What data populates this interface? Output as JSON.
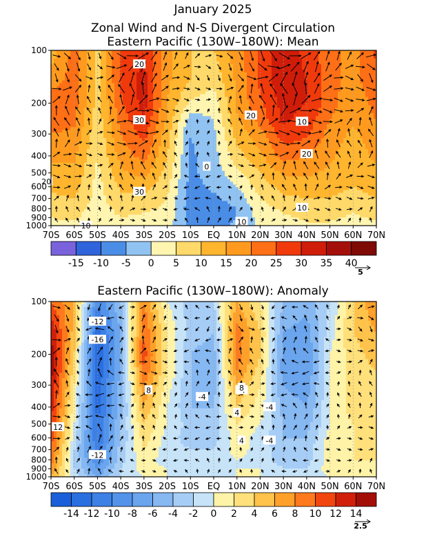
{
  "figure": {
    "title": "January 2025",
    "subtitle_line1": "Zonal Wind and N-S Divergent Circulation",
    "colors": {
      "background": "#ffffff",
      "text": "#000000",
      "arrow": "#000000"
    }
  },
  "chart_data": [
    {
      "type": "heatmap",
      "title": "Eastern Pacific (130W–180W): Mean",
      "x_ticks": [
        "70S",
        "60S",
        "50S",
        "40S",
        "30S",
        "20S",
        "10S",
        "EQ",
        "10N",
        "20N",
        "30N",
        "40N",
        "50N",
        "60N",
        "70N"
      ],
      "y_ticks": [
        "100",
        "200",
        "300",
        "400",
        "500",
        "600",
        "700",
        "800",
        "900",
        "1000"
      ],
      "y_scale": "log",
      "y_reversed": true,
      "colorbar_ticks": [
        "-15",
        "-10",
        "-5",
        "0",
        "5",
        "10",
        "15",
        "20",
        "25",
        "30",
        "35",
        "40"
      ],
      "colorbar_colors": [
        "#7a62dc",
        "#2f64dc",
        "#4a8de6",
        "#91c3f2",
        "#fff5b0",
        "#ffd96a",
        "#ffb52e",
        "#ff9a1f",
        "#ff6f16",
        "#f03a0c",
        "#cf1d0a",
        "#a50f0a",
        "#7e0b06"
      ],
      "contour_labels": [
        "20",
        "30",
        "20",
        "30",
        "20",
        "10",
        "20",
        "10",
        "0",
        "10",
        "10"
      ],
      "vector_reference": "5",
      "lat_grid": [
        -70,
        -60,
        -50,
        -40,
        -30,
        -20,
        -10,
        0,
        10,
        20,
        30,
        40,
        50,
        60,
        70
      ],
      "pressure_levels": [
        100,
        150,
        200,
        250,
        300,
        400,
        500,
        600,
        700,
        800,
        900,
        1000
      ],
      "u_wind": [
        [
          12,
          22,
          8,
          26,
          30,
          16,
          10,
          10,
          18,
          26,
          34,
          28,
          22,
          18,
          26
        ],
        [
          18,
          22,
          8,
          26,
          32,
          16,
          10,
          6,
          16,
          26,
          34,
          30,
          22,
          18,
          24
        ],
        [
          23,
          22,
          8,
          24,
          32,
          15,
          4,
          2,
          16,
          24,
          32,
          30,
          22,
          16,
          22
        ],
        [
          23,
          21,
          7,
          22,
          30,
          14,
          -3,
          0,
          14,
          22,
          31,
          28,
          20,
          16,
          20
        ],
        [
          20,
          19,
          6,
          20,
          27,
          12,
          -5,
          -1,
          12,
          18,
          28,
          26,
          18,
          14,
          18
        ],
        [
          16,
          16,
          5,
          17,
          22,
          10,
          -6,
          -2,
          8,
          14,
          22,
          20,
          16,
          12,
          16
        ],
        [
          13,
          14,
          4,
          14,
          17,
          8,
          -6,
          -3,
          4,
          10,
          16,
          16,
          14,
          12,
          14
        ],
        [
          11,
          12,
          3,
          11,
          12,
          6,
          -7,
          -4,
          0,
          7,
          12,
          12,
          12,
          10,
          12
        ],
        [
          9,
          10,
          3,
          9,
          9,
          5,
          -8,
          -6,
          -3,
          5,
          9,
          10,
          10,
          8,
          10
        ],
        [
          7,
          8,
          2,
          7,
          6,
          4,
          -8,
          -8,
          -5,
          3,
          6,
          8,
          8,
          6,
          8
        ],
        [
          5,
          6,
          1,
          5,
          4,
          3,
          -7,
          -8,
          -5,
          2,
          4,
          6,
          6,
          4,
          6
        ],
        [
          3,
          4,
          0,
          3,
          2,
          2,
          -6,
          -7,
          -4,
          1,
          2,
          4,
          4,
          2,
          4
        ]
      ]
    },
    {
      "type": "heatmap",
      "title": "Eastern Pacific (130W–180W): Anomaly",
      "x_ticks": [
        "70S",
        "60S",
        "50S",
        "40S",
        "30S",
        "20S",
        "10S",
        "EQ",
        "10N",
        "20N",
        "30N",
        "40N",
        "50N",
        "60N",
        "70N"
      ],
      "y_ticks": [
        "100",
        "200",
        "300",
        "400",
        "500",
        "600",
        "700",
        "800",
        "900",
        "1000"
      ],
      "y_scale": "log",
      "y_reversed": true,
      "colorbar_ticks": [
        "-14",
        "-12",
        "-10",
        "-8",
        "-6",
        "-4",
        "-2",
        "0",
        "2",
        "4",
        "6",
        "8",
        "10",
        "12",
        "14"
      ],
      "colorbar_colors": [
        "#1a5fd9",
        "#2a6fe0",
        "#3d80e6",
        "#5393ea",
        "#6aa5ee",
        "#86b8f2",
        "#a6cdf6",
        "#c6e3f8",
        "#fff3a8",
        "#ffe07a",
        "#ffc24a",
        "#ffa02a",
        "#ff7a1c",
        "#f2460f",
        "#d0200b",
        "#a30f07"
      ],
      "contour_labels": [
        "-12",
        "-16",
        "8",
        "-4",
        "-4",
        "8",
        "4",
        "4",
        "12",
        "-12",
        "-4",
        "-4"
      ],
      "vector_reference": "2.5",
      "lat_grid": [
        -70,
        -60,
        -50,
        -40,
        -30,
        -20,
        -10,
        0,
        10,
        20,
        30,
        40,
        50,
        60,
        70
      ],
      "pressure_levels": [
        100,
        150,
        200,
        250,
        300,
        400,
        500,
        600,
        700,
        800,
        900,
        1000
      ],
      "u_wind": [
        [
          10,
          6,
          -10,
          -4,
          8,
          0,
          -3,
          -2,
          6,
          2,
          -4,
          -5,
          -2,
          4,
          8
        ],
        [
          14,
          5,
          -13,
          -6,
          10,
          2,
          -3,
          -4,
          9,
          4,
          -6,
          -7,
          -1,
          4,
          6
        ],
        [
          15,
          4,
          -14,
          -6,
          11,
          2,
          -4,
          -5,
          9,
          4,
          -7,
          -8,
          0,
          3,
          5
        ],
        [
          15,
          3,
          -14,
          -6,
          10,
          2,
          -4,
          -5,
          8,
          3,
          -7,
          -8,
          0,
          3,
          4
        ],
        [
          14,
          2,
          -13,
          -5,
          8,
          1,
          -4,
          -5,
          6,
          2,
          -6,
          -7,
          0,
          3,
          4
        ],
        [
          13,
          1,
          -13,
          -5,
          6,
          0,
          -4,
          -4,
          4,
          1,
          -5,
          -6,
          0,
          3,
          3
        ],
        [
          12,
          0,
          -12,
          -4,
          4,
          0,
          -3,
          -3,
          2,
          0,
          -4,
          -5,
          0,
          2,
          3
        ],
        [
          11,
          -1,
          -12,
          -4,
          3,
          -1,
          -3,
          -3,
          1,
          -1,
          -4,
          -4,
          1,
          2,
          2
        ],
        [
          10,
          -2,
          -11,
          -3,
          2,
          -1,
          -2,
          -2,
          1,
          -1,
          -3,
          -3,
          1,
          2,
          2
        ],
        [
          9,
          -2,
          -10,
          -3,
          1,
          -1,
          -2,
          -2,
          0,
          -1,
          -3,
          -3,
          1,
          2,
          2
        ],
        [
          8,
          -2,
          -8,
          -2,
          1,
          0,
          -1,
          -1,
          0,
          0,
          -2,
          -2,
          1,
          1,
          2
        ],
        [
          6,
          -1,
          -6,
          -2,
          0,
          0,
          -1,
          -1,
          0,
          0,
          -1,
          -1,
          0,
          1,
          1
        ]
      ]
    }
  ]
}
